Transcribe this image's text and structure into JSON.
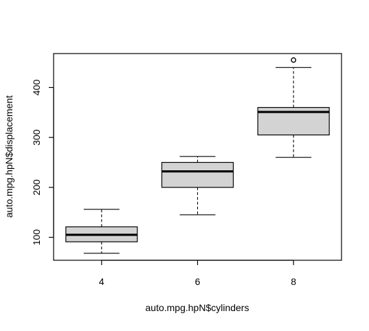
{
  "chart_data": {
    "type": "box",
    "title": "",
    "xlabel": "auto.mpg.hpN$cylinders",
    "ylabel": "auto.mpg.hpN$displacement",
    "categories": [
      "4",
      "6",
      "8"
    ],
    "boxes": [
      {
        "category": "4",
        "whisker_low": 68,
        "q1": 91,
        "median": 105,
        "q3": 121,
        "whisker_high": 156,
        "outliers": []
      },
      {
        "category": "6",
        "whisker_low": 145,
        "q1": 200,
        "median": 232,
        "q3": 250,
        "whisker_high": 262,
        "outliers": []
      },
      {
        "category": "8",
        "whisker_low": 260,
        "q1": 305,
        "median": 351,
        "q3": 360,
        "whisker_high": 440,
        "outliers": [
          455
        ]
      }
    ],
    "y_ticks": [
      100,
      200,
      300,
      400
    ],
    "ylim": [
      54,
      468
    ],
    "xlim": [
      0.5,
      3.5
    ],
    "grid": false,
    "legend": "none",
    "box_fill": "#d3d3d3",
    "line_color": "#000000"
  }
}
